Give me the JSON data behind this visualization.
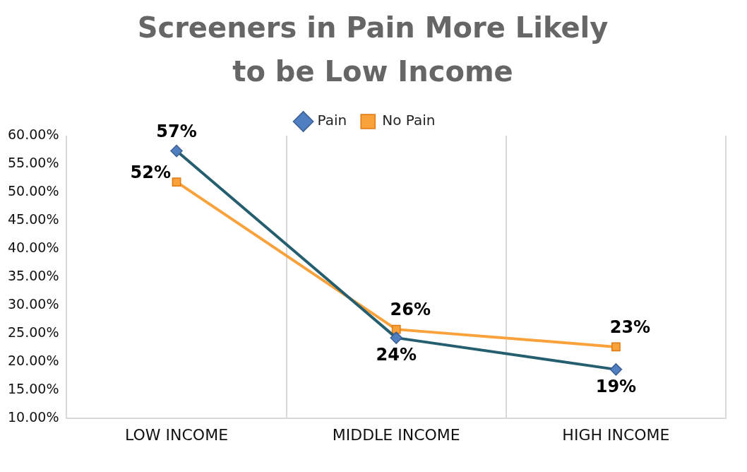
{
  "chart_data": {
    "type": "line",
    "title": "Screeners in Pain More Likely to be Low Income",
    "categories": [
      "LOW INCOME",
      "MIDDLE INCOME",
      "HIGH INCOME"
    ],
    "series": [
      {
        "name": "Pain",
        "color": "#255e6f",
        "values": [
          57.3,
          24.2,
          18.6
        ],
        "marker": "diamond",
        "value_labels": [
          "57%",
          "24%",
          "19%"
        ]
      },
      {
        "name": "No Pain",
        "color": "#f9a13a",
        "values": [
          51.8,
          25.7,
          22.6
        ],
        "marker": "square",
        "value_labels": [
          "52%",
          "26%",
          "23%"
        ]
      }
    ],
    "ylim": [
      10,
      60
    ],
    "yticks": [
      {
        "value": 10,
        "label": "10.00%"
      },
      {
        "value": 15,
        "label": "15.00%"
      },
      {
        "value": 20,
        "label": "20.00%"
      },
      {
        "value": 25,
        "label": "25.00%"
      },
      {
        "value": 30,
        "label": "30.00%"
      },
      {
        "value": 35,
        "label": "35.00%"
      },
      {
        "value": 40,
        "label": "40.00%"
      },
      {
        "value": 45,
        "label": "45.00%"
      },
      {
        "value": 50,
        "label": "50.00%"
      },
      {
        "value": 55,
        "label": "55.00%"
      },
      {
        "value": 60,
        "label": "60.00%"
      }
    ],
    "grid": "x",
    "legend": "top",
    "line_style": "solid"
  }
}
